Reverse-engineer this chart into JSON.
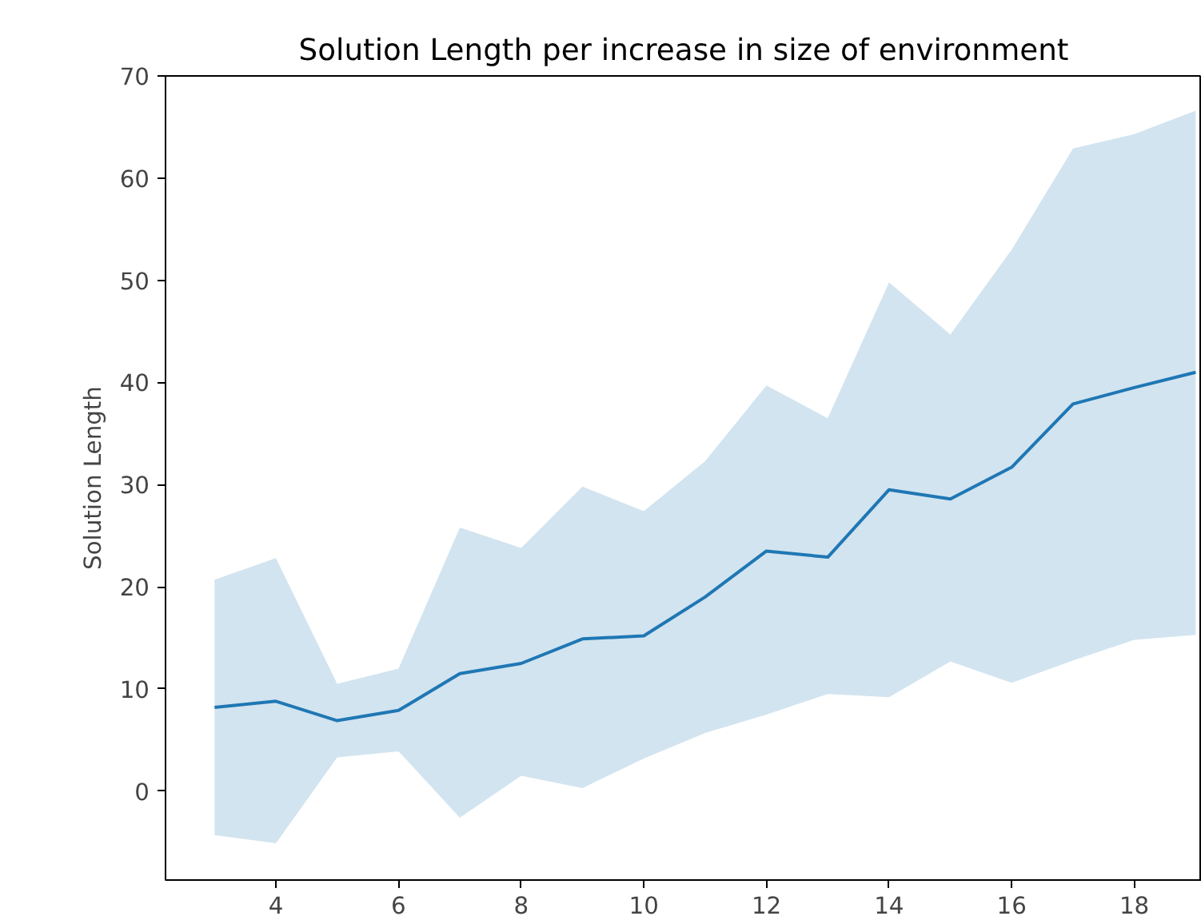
{
  "chart_data": {
    "type": "line",
    "title": "Solution Length per increase in size of environment",
    "ylabel": "Solution Length",
    "x": [
      3,
      4,
      5,
      6,
      7,
      8,
      9,
      10,
      11,
      12,
      13,
      14,
      15,
      16,
      17,
      18,
      19
    ],
    "series": [
      {
        "color": "#1f77b4",
        "values": [
          8.2,
          8.8,
          6.9,
          7.9,
          11.5,
          12.5,
          14.9,
          15.2,
          19,
          23.5,
          22.9,
          29.5,
          28.6,
          31.7,
          37.9,
          39.5,
          41
        ],
        "lower": [
          -4.3,
          -5.1,
          3.3,
          3.9,
          -2.6,
          1.5,
          0.3,
          3.2,
          5.7,
          7.5,
          9.5,
          9.2,
          12.7,
          10.6,
          12.8,
          14.8,
          15.3
        ],
        "upper": [
          20.7,
          22.8,
          10.5,
          12,
          25.8,
          23.8,
          29.8,
          27.4,
          32.3,
          39.7,
          36.5,
          49.8,
          44.7,
          53,
          62.9,
          64.3,
          66.6
        ]
      }
    ],
    "xlim": [
      2.2,
      19.1
    ],
    "ylim": [
      -8.7,
      70
    ],
    "xticks": [
      4,
      6,
      8,
      10,
      12,
      14,
      16,
      18
    ],
    "yticks": [
      0,
      10,
      20,
      30,
      40,
      50,
      60,
      70
    ],
    "grid": false,
    "marker": "none",
    "line_style": "solid"
  }
}
